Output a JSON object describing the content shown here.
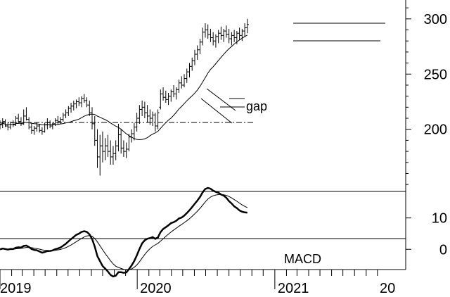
{
  "chart_data": [
    {
      "type": "ohlc",
      "panel": "price",
      "yticks": [
        200,
        250,
        300
      ],
      "ylim": [
        145,
        312
      ],
      "x_range": [
        "2019-01",
        "2021-10"
      ],
      "x_tick_labels": [
        "2019",
        "2020",
        "2021",
        "20"
      ],
      "annotations": [
        "gap"
      ],
      "series": [
        {
          "kind": "ohlc",
          "start": "2019-01-01",
          "interval_days": 7,
          "values": [
            [
              205,
              208,
              200,
              204
            ],
            [
              204,
              210,
              201,
              207
            ],
            [
              207,
              209,
              202,
              203
            ],
            [
              203,
              206,
              199,
              202
            ],
            [
              202,
              207,
              200,
              206
            ],
            [
              206,
              208,
              202,
              204
            ],
            [
              204,
              212,
              203,
              210
            ],
            [
              210,
              214,
              205,
              207
            ],
            [
              207,
              211,
              203,
              205
            ],
            [
              205,
              218,
              204,
              212
            ],
            [
              212,
              220,
              208,
              209
            ],
            [
              209,
              211,
              200,
              202
            ],
            [
              202,
              205,
              196,
              199
            ],
            [
              199,
              203,
              195,
              201
            ],
            [
              201,
              206,
              198,
              203
            ],
            [
              203,
              205,
              197,
              199
            ],
            [
              199,
              202,
              195,
              198
            ],
            [
              198,
              206,
              197,
              204
            ],
            [
              204,
              210,
              200,
              206
            ],
            [
              206,
              208,
              201,
              203
            ],
            [
              203,
              206,
              200,
              205
            ],
            [
              205,
              210,
              203,
              208
            ],
            [
              208,
              212,
              204,
              207
            ],
            [
              207,
              211,
              205,
              209
            ],
            [
              209,
              215,
              207,
              213
            ],
            [
              213,
              218,
              210,
              215
            ],
            [
              215,
              221,
              212,
              219
            ],
            [
              219,
              224,
              215,
              221
            ],
            [
              221,
              226,
              217,
              223
            ],
            [
              223,
              227,
              219,
              225
            ],
            [
              225,
              229,
              221,
              224
            ],
            [
              224,
              230,
              220,
              228
            ],
            [
              228,
              232,
              224,
              226
            ],
            [
              226,
              229,
              220,
              222
            ],
            [
              222,
              226,
              212,
              215
            ],
            [
              215,
              220,
              200,
              205
            ],
            [
              205,
              212,
              185,
              190
            ],
            [
              190,
              200,
              165,
              175
            ],
            [
              175,
              195,
              158,
              185
            ],
            [
              185,
              198,
              170,
              180
            ],
            [
              180,
              192,
              172,
              185
            ],
            [
              185,
              195,
              175,
              180
            ],
            [
              180,
              190,
              168,
              175
            ],
            [
              175,
              185,
              168,
              178
            ],
            [
              178,
              190,
              172,
              185
            ],
            [
              185,
              205,
              180,
              195
            ],
            [
              195,
              200,
              178,
              183
            ],
            [
              183,
              190,
              175,
              180
            ],
            [
              180,
              188,
              174,
              182
            ],
            [
              182,
              196,
              180,
              193
            ],
            [
              193,
              200,
              188,
              196
            ],
            [
              196,
              206,
              190,
              202
            ],
            [
              202,
              215,
              198,
              210
            ],
            [
              210,
              222,
              205,
              218
            ],
            [
              218,
              226,
              212,
              220
            ],
            [
              220,
              225,
              210,
              215
            ],
            [
              215,
              222,
              206,
              212
            ],
            [
              212,
              218,
              204,
              210
            ],
            [
              210,
              216,
              203,
              213
            ],
            [
              213,
              215,
              198,
              203
            ],
            [
              203,
              218,
              200,
              215
            ],
            [
              220,
              236,
              218,
              232
            ],
            [
              232,
              238,
              226,
              229
            ],
            [
              229,
              235,
              224,
              227
            ],
            [
              227,
              233,
              222,
              230
            ],
            [
              230,
              236,
              225,
              234
            ],
            [
              234,
              240,
              229,
              232
            ],
            [
              232,
              238,
              227,
              236
            ],
            [
              236,
              245,
              233,
              242
            ],
            [
              242,
              248,
              237,
              240
            ],
            [
              240,
              250,
              238,
              246
            ],
            [
              246,
              255,
              242,
              252
            ],
            [
              252,
              260,
              247,
              257
            ],
            [
              257,
              265,
              253,
              262
            ],
            [
              262,
              272,
              258,
              268
            ],
            [
              268,
              276,
              263,
              272
            ],
            [
              272,
              282,
              268,
              279
            ],
            [
              279,
              292,
              276,
              288
            ],
            [
              288,
              296,
              283,
              290
            ],
            [
              290,
              295,
              282,
              286
            ],
            [
              286,
              291,
              279,
              283
            ],
            [
              283,
              288,
              276,
              280
            ],
            [
              280,
              286,
              274,
              284
            ],
            [
              284,
              290,
              278,
              287
            ],
            [
              287,
              293,
              281,
              285
            ],
            [
              285,
              291,
              279,
              289
            ],
            [
              289,
              294,
              283,
              286
            ],
            [
              286,
              291,
              278,
              282
            ],
            [
              282,
              288,
              276,
              285
            ],
            [
              285,
              290,
              279,
              283
            ],
            [
              283,
              289,
              277,
              287
            ],
            [
              287,
              292,
              281,
              285
            ],
            [
              285,
              291,
              280,
              289
            ],
            [
              289,
              296,
              284,
              292
            ],
            [
              292,
              300,
              287,
              295
            ]
          ]
        },
        {
          "kind": "moving_average",
          "values": []
        }
      ]
    },
    {
      "type": "line",
      "panel": "indicator",
      "yticks": [
        0,
        10
      ],
      "ylim": [
        -6,
        18
      ],
      "annotations": [
        "MACD"
      ],
      "series": [
        {
          "kind": "macd",
          "values": []
        },
        {
          "kind": "signal",
          "values": []
        }
      ]
    }
  ]
}
